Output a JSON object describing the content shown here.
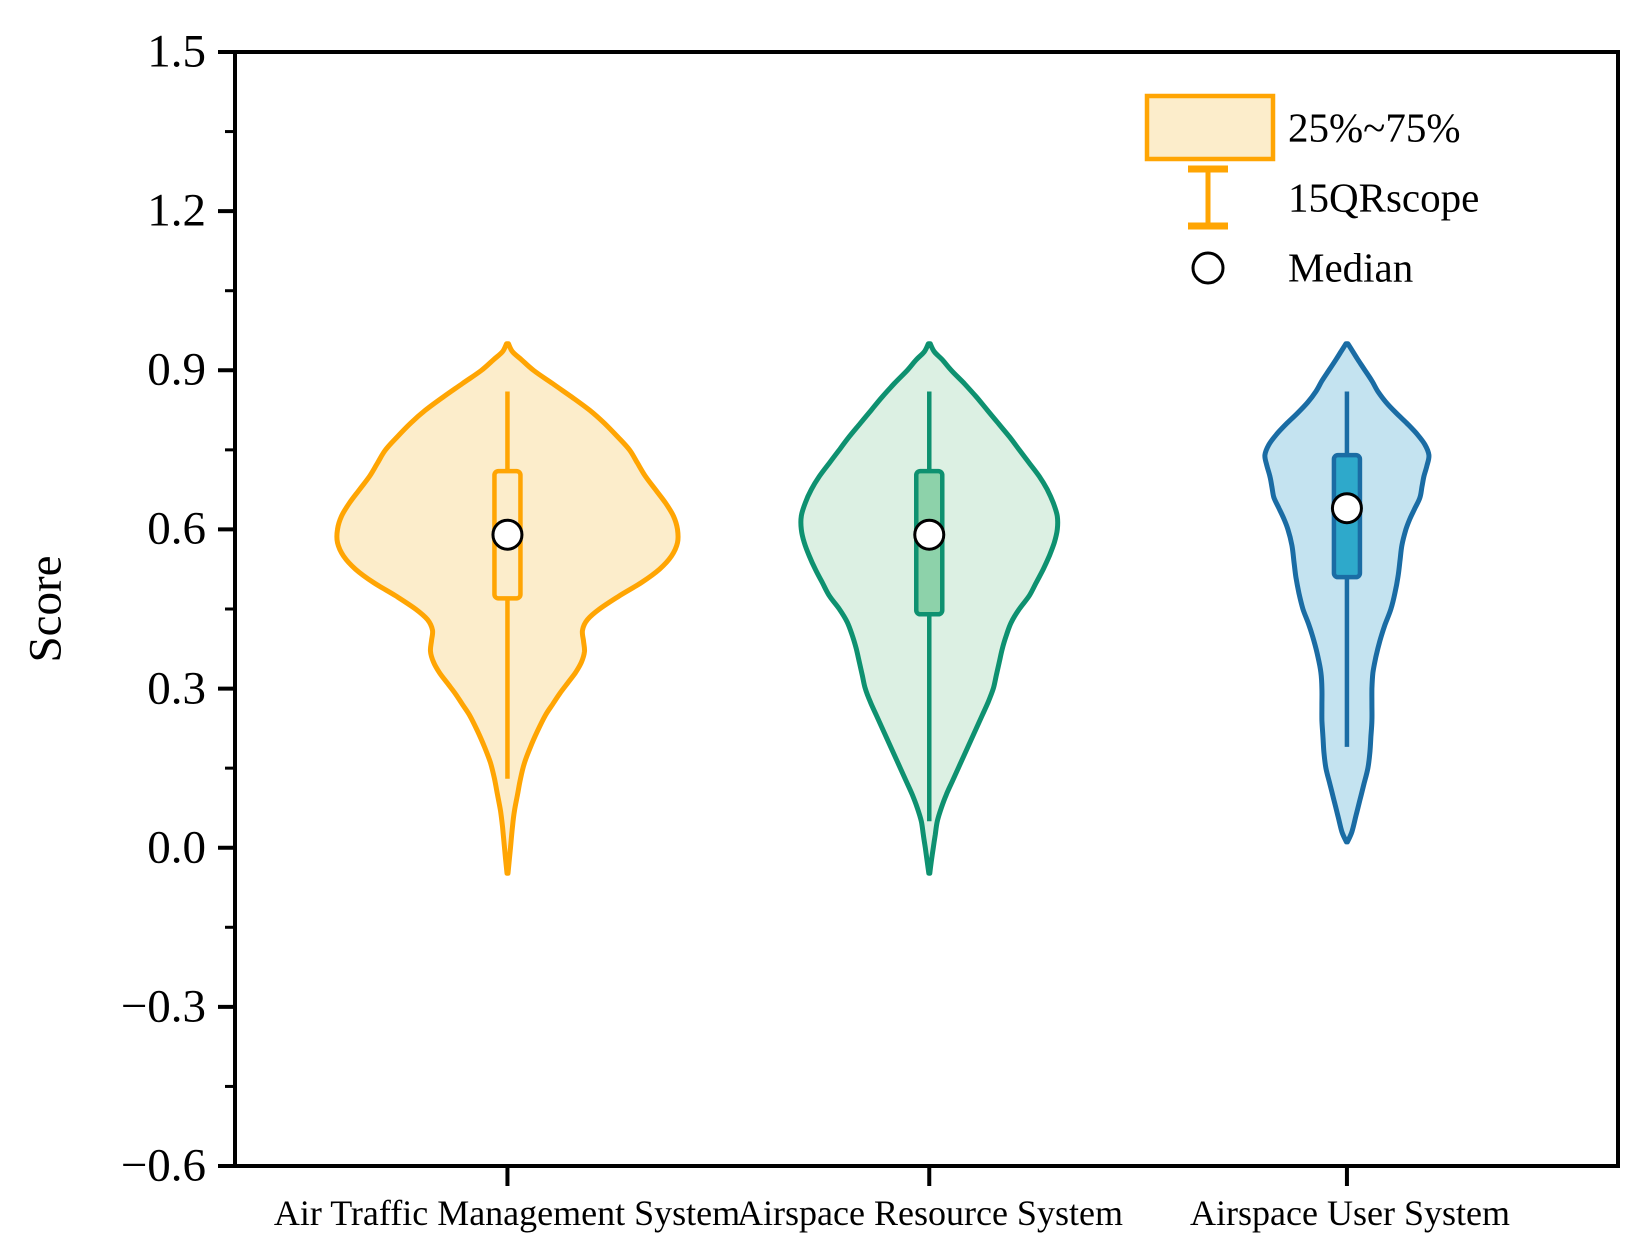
{
  "figure": {
    "background": "#ffffff"
  },
  "chart_data": {
    "type": "violin",
    "title": "",
    "xlabel": "",
    "ylabel": "Score",
    "categories": [
      "Air Traffic Management System",
      "Airspace Resource System",
      "Airspace User System"
    ],
    "y_axis": {
      "min": -0.6,
      "max": 1.5,
      "major_ticks": [
        1.5,
        1.2,
        0.9,
        0.6,
        0.3,
        0.0,
        -0.3,
        -0.6
      ],
      "tick_labels": [
        "1.5",
        "1.2",
        "0.9",
        "0.6",
        "0.3",
        "0.0",
        "−0.3",
        "−0.6"
      ],
      "minor_ticks": [
        1.35,
        1.05,
        0.75,
        0.45,
        0.15,
        -0.15,
        -0.45
      ],
      "grid": false
    },
    "legend": {
      "position": "top-right",
      "items": [
        {
          "symbol": "box",
          "label": "25%~75%"
        },
        {
          "symbol": "whisker",
          "label": "15QRscope"
        },
        {
          "symbol": "circle",
          "label": "Median"
        }
      ]
    },
    "series": [
      {
        "name": "Air Traffic Management System",
        "stroke": "#FFA503",
        "fill": "#FCEDCB",
        "box_fill": "#FCEDCB",
        "box_stroke": "#FFA503",
        "stats": {
          "max": 0.95,
          "whisker_high": 0.86,
          "q3": 0.71,
          "median": 0.59,
          "q1": 0.47,
          "whisker_low": 0.13,
          "min": -0.05
        },
        "profile": [
          [
            0.95,
            1
          ],
          [
            0.935,
            5
          ],
          [
            0.92,
            14
          ],
          [
            0.9,
            26
          ],
          [
            0.875,
            45
          ],
          [
            0.85,
            64
          ],
          [
            0.825,
            82
          ],
          [
            0.8,
            97
          ],
          [
            0.775,
            110
          ],
          [
            0.75,
            122
          ],
          [
            0.725,
            130
          ],
          [
            0.7,
            138
          ],
          [
            0.675,
            148
          ],
          [
            0.65,
            158
          ],
          [
            0.625,
            166
          ],
          [
            0.6,
            170
          ],
          [
            0.575,
            170
          ],
          [
            0.55,
            164
          ],
          [
            0.525,
            152
          ],
          [
            0.5,
            134
          ],
          [
            0.475,
            112
          ],
          [
            0.45,
            92
          ],
          [
            0.43,
            80
          ],
          [
            0.41,
            75
          ],
          [
            0.39,
            76
          ],
          [
            0.37,
            77
          ],
          [
            0.35,
            74
          ],
          [
            0.33,
            68
          ],
          [
            0.31,
            60
          ],
          [
            0.29,
            52
          ],
          [
            0.27,
            45
          ],
          [
            0.25,
            38
          ],
          [
            0.22,
            30
          ],
          [
            0.19,
            23
          ],
          [
            0.16,
            17
          ],
          [
            0.13,
            13
          ],
          [
            0.1,
            10
          ],
          [
            0.07,
            7
          ],
          [
            0.04,
            5
          ],
          [
            0.0,
            3
          ],
          [
            -0.048,
            0.5
          ]
        ]
      },
      {
        "name": "Airspace Resource System",
        "stroke": "#0E9170",
        "fill": "#DCF0E3",
        "box_fill": "#8DD2AA",
        "box_stroke": "#0E9170",
        "stats": {
          "max": 0.95,
          "whisker_high": 0.86,
          "q3": 0.71,
          "median": 0.59,
          "q1": 0.44,
          "whisker_low": 0.05,
          "min": -0.05
        },
        "profile": [
          [
            0.95,
            1
          ],
          [
            0.935,
            5
          ],
          [
            0.92,
            13
          ],
          [
            0.9,
            22
          ],
          [
            0.875,
            35
          ],
          [
            0.85,
            47
          ],
          [
            0.825,
            58
          ],
          [
            0.8,
            69
          ],
          [
            0.775,
            80
          ],
          [
            0.75,
            90
          ],
          [
            0.725,
            100
          ],
          [
            0.7,
            110
          ],
          [
            0.675,
            118
          ],
          [
            0.65,
            124
          ],
          [
            0.625,
            128
          ],
          [
            0.6,
            128
          ],
          [
            0.575,
            125
          ],
          [
            0.55,
            120
          ],
          [
            0.525,
            114
          ],
          [
            0.5,
            107
          ],
          [
            0.475,
            100
          ],
          [
            0.45,
            90
          ],
          [
            0.425,
            82
          ],
          [
            0.4,
            77
          ],
          [
            0.375,
            73
          ],
          [
            0.35,
            70
          ],
          [
            0.325,
            67
          ],
          [
            0.3,
            64
          ],
          [
            0.275,
            59
          ],
          [
            0.25,
            53
          ],
          [
            0.225,
            47
          ],
          [
            0.2,
            41
          ],
          [
            0.175,
            35
          ],
          [
            0.15,
            29
          ],
          [
            0.125,
            23
          ],
          [
            0.1,
            17
          ],
          [
            0.075,
            12
          ],
          [
            0.05,
            8
          ],
          [
            0.025,
            6
          ],
          [
            0.0,
            4
          ],
          [
            -0.048,
            0.5
          ]
        ]
      },
      {
        "name": "Airspace User System",
        "stroke": "#1A6CA4",
        "fill": "#C4E3F0",
        "box_fill": "#2EA9CB",
        "box_stroke": "#1A6CA4",
        "stats": {
          "max": 0.95,
          "whisker_high": 0.86,
          "q3": 0.74,
          "median": 0.64,
          "q1": 0.51,
          "whisker_low": 0.19,
          "min": 0.01
        },
        "profile": [
          [
            0.95,
            1
          ],
          [
            0.935,
            6
          ],
          [
            0.92,
            11
          ],
          [
            0.9,
            18
          ],
          [
            0.88,
            25
          ],
          [
            0.86,
            31
          ],
          [
            0.84,
            39
          ],
          [
            0.82,
            49
          ],
          [
            0.8,
            60
          ],
          [
            0.78,
            70
          ],
          [
            0.76,
            78
          ],
          [
            0.74,
            82
          ],
          [
            0.72,
            80
          ],
          [
            0.7,
            77
          ],
          [
            0.68,
            75
          ],
          [
            0.66,
            73
          ],
          [
            0.64,
            68
          ],
          [
            0.62,
            63
          ],
          [
            0.6,
            59
          ],
          [
            0.57,
            55
          ],
          [
            0.54,
            53
          ],
          [
            0.51,
            51
          ],
          [
            0.48,
            48
          ],
          [
            0.45,
            44
          ],
          [
            0.42,
            38
          ],
          [
            0.39,
            33
          ],
          [
            0.36,
            29
          ],
          [
            0.33,
            26
          ],
          [
            0.3,
            25
          ],
          [
            0.27,
            25
          ],
          [
            0.24,
            25
          ],
          [
            0.21,
            24
          ],
          [
            0.18,
            23
          ],
          [
            0.15,
            21
          ],
          [
            0.12,
            17
          ],
          [
            0.09,
            13
          ],
          [
            0.06,
            9
          ],
          [
            0.03,
            5
          ],
          [
            0.011,
            0.5
          ]
        ]
      }
    ],
    "median_dot": {
      "fill": "#FFFFFF",
      "stroke": "#000000",
      "radius": 14.5
    }
  }
}
